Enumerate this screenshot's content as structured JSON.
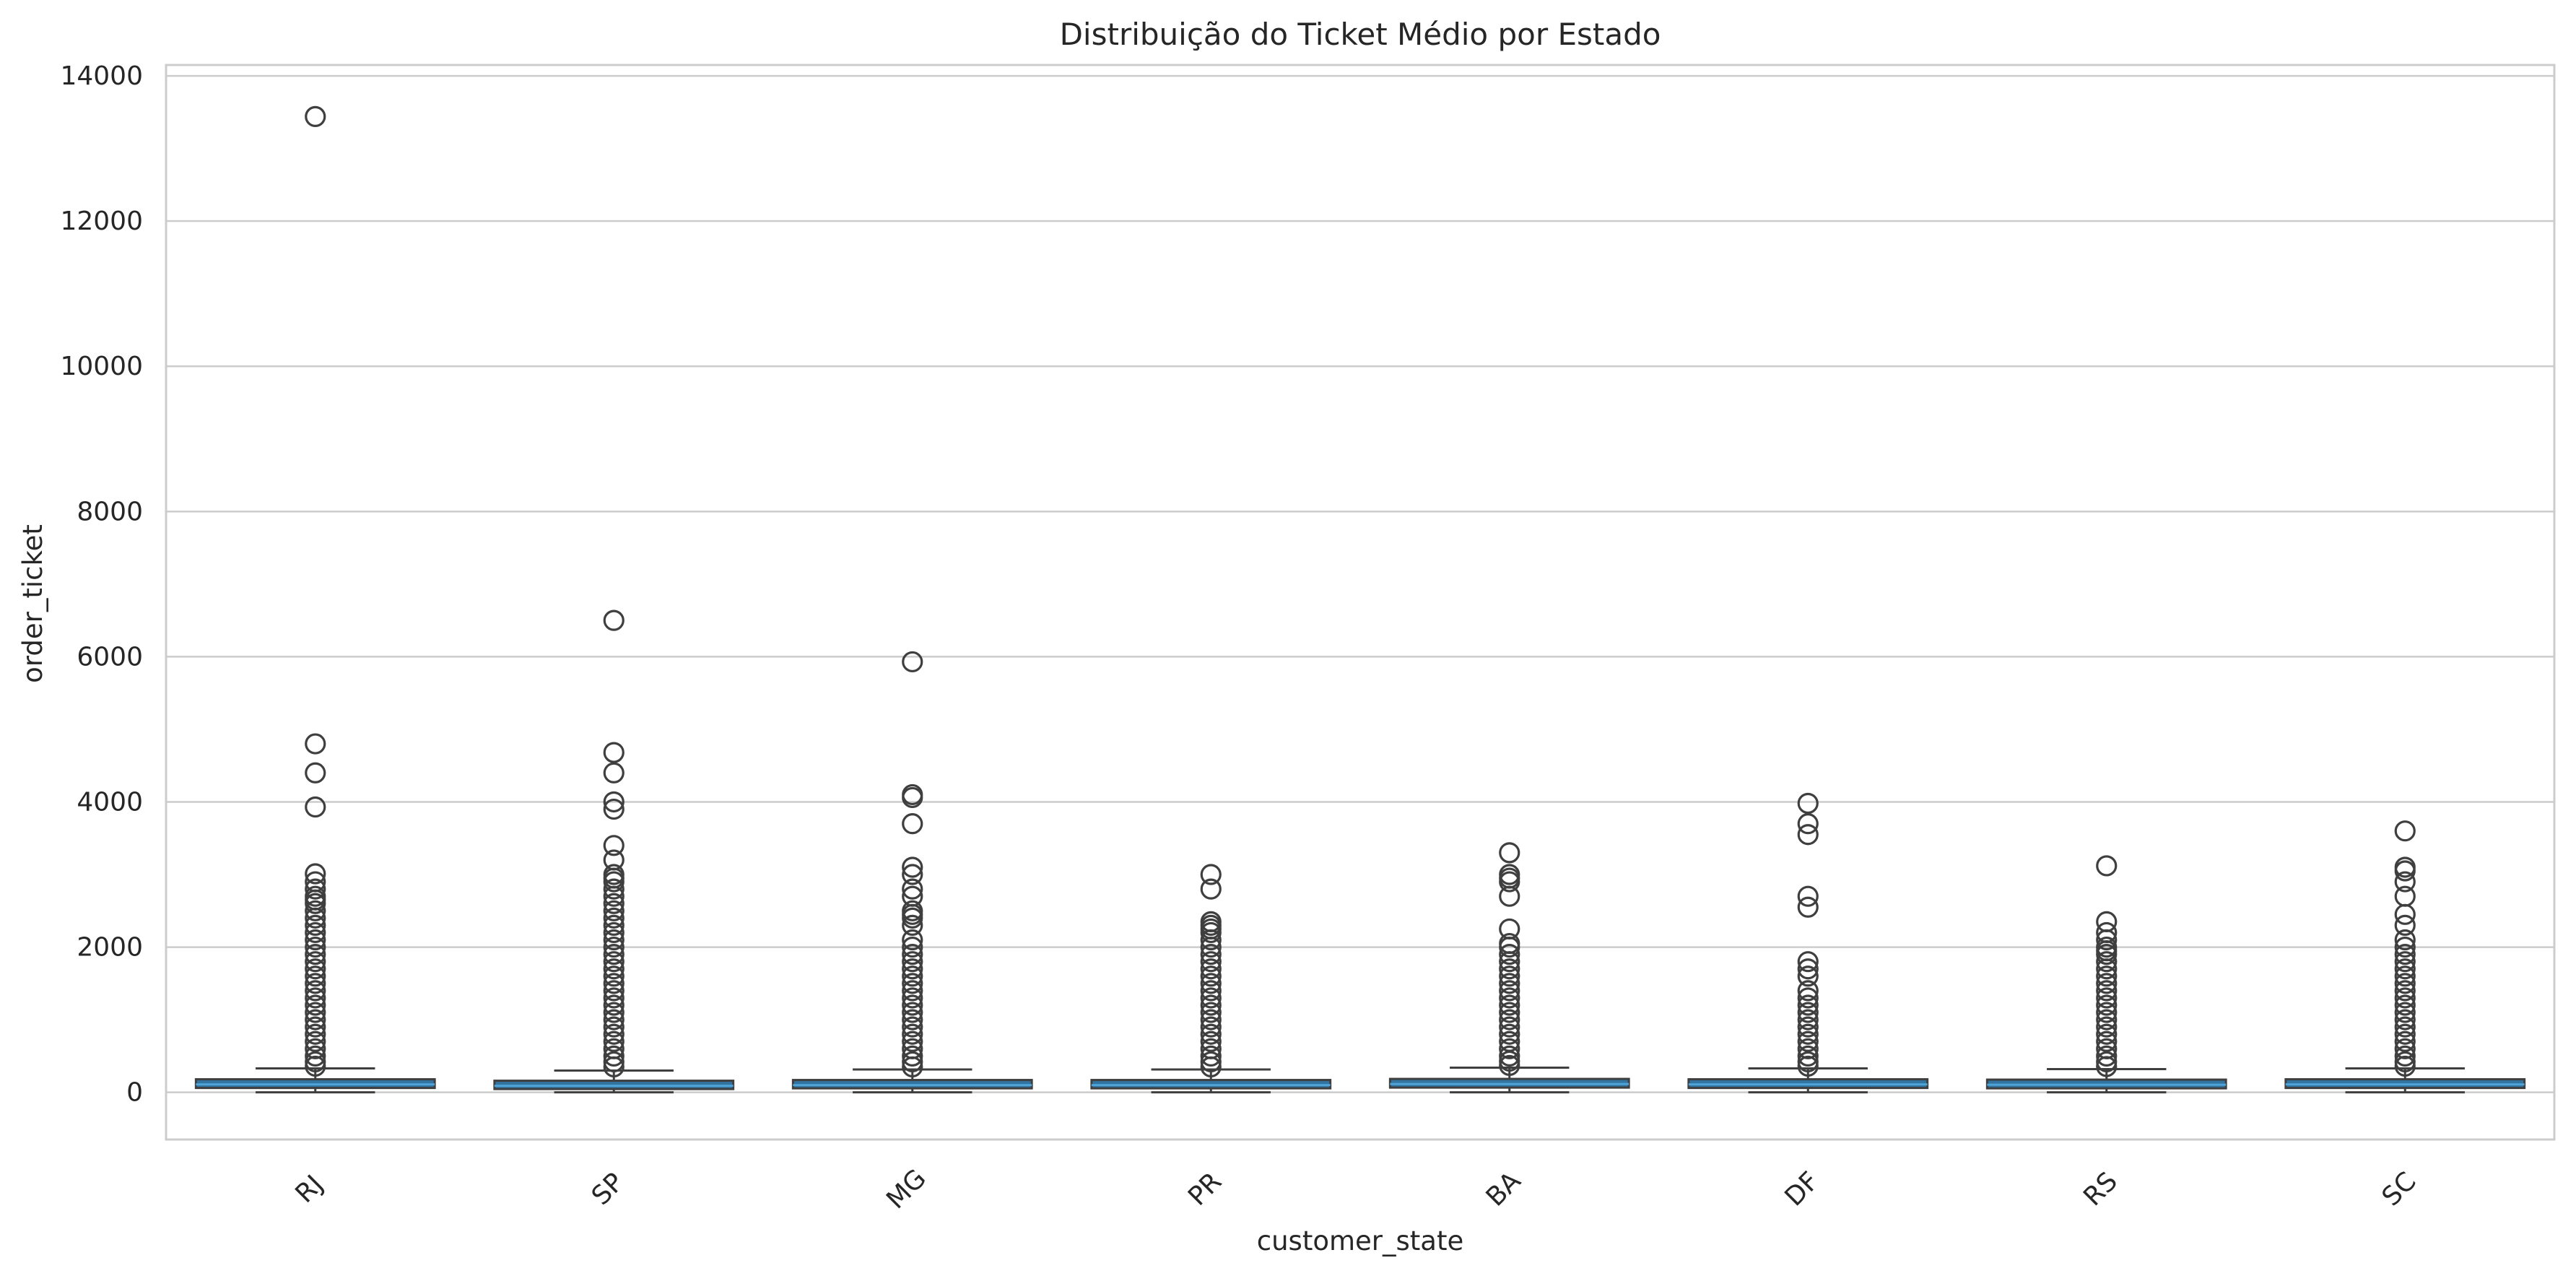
{
  "chart_data": {
    "type": "boxplot",
    "title": "Distribuição do Ticket Médio por Estado",
    "xlabel": "customer_state",
    "ylabel": "order_ticket",
    "ylim": [
      -650,
      14150
    ],
    "yticks": [
      0,
      2000,
      4000,
      6000,
      8000,
      10000,
      12000,
      14000
    ],
    "grid": "horizontal",
    "box_color": "#3274a1",
    "median_color": "#4fa3d6",
    "categories": [
      "RJ",
      "SP",
      "MG",
      "PR",
      "BA",
      "DF",
      "RS",
      "SC"
    ],
    "boxes": [
      {
        "category": "RJ",
        "whislo": 0,
        "q1": 60,
        "median": 110,
        "q3": 180,
        "whishi": 330,
        "fliers": [
          13440,
          4800,
          4400,
          3930,
          3010,
          2900,
          2800,
          2700,
          2650,
          2600,
          2500,
          2400,
          2300,
          2200,
          2100,
          2000,
          1900,
          1800,
          1700,
          1600,
          1500,
          1400,
          1300,
          1200,
          1100,
          1000,
          900,
          800,
          700,
          600,
          500,
          420,
          360
        ]
      },
      {
        "category": "SP",
        "whislo": 0,
        "q1": 45,
        "median": 90,
        "q3": 160,
        "whishi": 300,
        "fliers": [
          6500,
          4680,
          4400,
          4000,
          3900,
          3400,
          3200,
          3000,
          2950,
          2900,
          2800,
          2700,
          2600,
          2500,
          2400,
          2300,
          2200,
          2100,
          2000,
          1900,
          1800,
          1700,
          1600,
          1500,
          1400,
          1300,
          1200,
          1100,
          1000,
          900,
          800,
          700,
          600,
          500,
          420,
          350
        ]
      },
      {
        "category": "MG",
        "whislo": 0,
        "q1": 55,
        "median": 100,
        "q3": 170,
        "whishi": 315,
        "fliers": [
          5930,
          4100,
          4060,
          3700,
          3100,
          3000,
          2800,
          2700,
          2500,
          2450,
          2400,
          2300,
          2100,
          2000,
          1900,
          1800,
          1700,
          1600,
          1500,
          1400,
          1300,
          1200,
          1100,
          1000,
          900,
          800,
          700,
          600,
          500,
          420,
          350
        ]
      },
      {
        "category": "PR",
        "whislo": 0,
        "q1": 55,
        "median": 100,
        "q3": 170,
        "whishi": 315,
        "fliers": [
          3000,
          2800,
          2350,
          2300,
          2250,
          2200,
          2100,
          2000,
          1900,
          1800,
          1700,
          1600,
          1500,
          1400,
          1300,
          1200,
          1100,
          1000,
          900,
          800,
          700,
          600,
          500,
          420,
          350
        ]
      },
      {
        "category": "BA",
        "whislo": 0,
        "q1": 65,
        "median": 115,
        "q3": 185,
        "whishi": 340,
        "fliers": [
          3300,
          3000,
          2950,
          2900,
          2700,
          2250,
          2050,
          2000,
          1900,
          1800,
          1700,
          1600,
          1500,
          1400,
          1300,
          1200,
          1100,
          1000,
          900,
          800,
          700,
          600,
          500,
          430,
          370
        ]
      },
      {
        "category": "DF",
        "whislo": 0,
        "q1": 60,
        "median": 110,
        "q3": 180,
        "whishi": 330,
        "fliers": [
          3980,
          3700,
          3550,
          2700,
          2550,
          1800,
          1700,
          1600,
          1400,
          1300,
          1200,
          1100,
          1000,
          900,
          800,
          700,
          600,
          500,
          420,
          360
        ]
      },
      {
        "category": "RS",
        "whislo": 0,
        "q1": 55,
        "median": 105,
        "q3": 175,
        "whishi": 320,
        "fliers": [
          3120,
          2350,
          2200,
          2100,
          2000,
          1950,
          1900,
          1800,
          1700,
          1600,
          1500,
          1400,
          1300,
          1200,
          1100,
          1000,
          900,
          800,
          700,
          600,
          500,
          420,
          355
        ]
      },
      {
        "category": "SC",
        "whislo": 0,
        "q1": 60,
        "median": 110,
        "q3": 180,
        "whishi": 330,
        "fliers": [
          3600,
          3100,
          3050,
          2900,
          2700,
          2450,
          2300,
          2100,
          2000,
          1900,
          1800,
          1700,
          1600,
          1500,
          1400,
          1300,
          1200,
          1100,
          1000,
          900,
          800,
          700,
          600,
          500,
          420,
          360
        ]
      }
    ]
  }
}
